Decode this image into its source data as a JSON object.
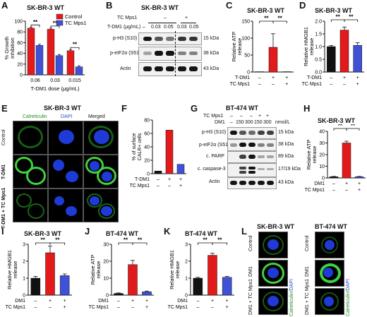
{
  "panels": {
    "A": {
      "letter": "A",
      "title": "SK-BR-3 WT",
      "ylabel": "% Growth inhibition",
      "xlabel": "T-DM1 dose (μg/mL)",
      "legend": [
        "Control",
        "TC Mps1"
      ],
      "yticks": [
        "0",
        "20",
        "40",
        "60",
        "80",
        "100"
      ],
      "categories": [
        "0.06",
        "0.03",
        "0.015"
      ],
      "sig": [
        "**",
        "**",
        "**"
      ]
    },
    "B": {
      "letter": "B",
      "title": "SK-BR-3 WT",
      "tc_label": "TC Mps1",
      "tc_minus": "–",
      "tc_plus": "+",
      "dose_label": "T-DM1 (μg/mL)",
      "doses": [
        "–",
        "0.03",
        "0.05",
        "0.03",
        "0.05"
      ],
      "rows": [
        "p-H3 (S10)",
        "p-eIF2α (S51)",
        "Actin"
      ],
      "sizes": [
        "15 kDa",
        "38 kDa",
        "43 kDa"
      ]
    },
    "C": {
      "letter": "C",
      "title": "SK-BR-3 WT",
      "ylabel": "Relative ATP release",
      "yticks": [
        "0",
        "50",
        "100",
        "150"
      ],
      "row1_label": "T-DM1",
      "row2_label": "TC Mps1",
      "row1": [
        "–",
        "+",
        "+"
      ],
      "row2": [
        "–",
        "–",
        "+"
      ],
      "sig": [
        "**",
        "**"
      ]
    },
    "D": {
      "letter": "D",
      "title": "SK-BR-3 WT",
      "ylabel": "Relative HMGB1 release",
      "yticks": [
        "0.0",
        "0.5",
        "1.0",
        "1.5",
        "2.0"
      ],
      "row1_label": "T-DM1",
      "row2_label": "TC Mps1",
      "row1": [
        "–",
        "+",
        "+"
      ],
      "row2": [
        "–",
        "–",
        "+"
      ],
      "sig": [
        "**",
        "**"
      ]
    },
    "E": {
      "letter": "E",
      "title": "SK-BR-3 WT",
      "cols": [
        "Calreticulin",
        "DAPI",
        "Merged"
      ],
      "rows": [
        "Control",
        "T-DM1",
        "T-DM1 + TC Mps1"
      ]
    },
    "F": {
      "letter": "F",
      "ylabel": "% of surface CALR+ cells",
      "yticks": [
        "0",
        "20",
        "40",
        "60",
        "80"
      ],
      "row1_label": "T-DM1",
      "row2_label": "TC Mps1",
      "row1": [
        "–",
        "+",
        "+"
      ],
      "row2": [
        "–",
        "–",
        "+"
      ]
    },
    "G": {
      "letter": "G",
      "title": "BT-474 WT",
      "tc_label": "TC Mps1",
      "dm1_label": "DM1",
      "unit": "nmol/L",
      "tc_row": [
        "–",
        "–",
        "–",
        "+",
        "+"
      ],
      "dm1_row": [
        "–",
        "150",
        "300",
        "150",
        "300"
      ],
      "rows": [
        "p-H3 (S10)",
        "p-eIF2α (S51)",
        "c. PARP",
        "c. caspase-3",
        "Actin"
      ],
      "sizes": [
        "15 kDa",
        "38 kDa",
        "89 kDa",
        "17/19 kDa",
        "43 kDa"
      ]
    },
    "H": {
      "letter": "H",
      "title": "SK-BR-3 WT",
      "ylabel": "Relative ATP release",
      "yticks": [
        "0",
        "10",
        "20",
        "30",
        "40"
      ],
      "row1_label": "DM1",
      "row2_label": "TC Mps1",
      "row1": [
        "–",
        "+",
        "+"
      ],
      "row2": [
        "–",
        "–",
        "+"
      ],
      "sig": [
        "**",
        "**"
      ]
    },
    "I": {
      "letter": "I",
      "title": "SK-BR-3 WT",
      "ylabel": "Relative HMGB1 release",
      "yticks": [
        "0",
        "1",
        "2",
        "3"
      ],
      "row1_label": "DM1",
      "row2_label": "TC Mps1",
      "row1": [
        "–",
        "+",
        "+"
      ],
      "row2": [
        "–",
        "–",
        "+"
      ],
      "sig": [
        "**",
        "**"
      ]
    },
    "J": {
      "letter": "J",
      "title": "BT-474 WT",
      "ylabel": "Relative ATP release",
      "yticks": [
        "0",
        "10",
        "20",
        "30"
      ],
      "row1_label": "DM1",
      "row2_label": "TC Mps1",
      "row1": [
        "–",
        "+",
        "+"
      ],
      "row2": [
        "–",
        "–",
        "+"
      ],
      "sig": [
        "**",
        "**"
      ]
    },
    "K": {
      "letter": "K",
      "title": "BT-474 WT",
      "ylabel": "Relative HMGB1 release",
      "yticks": [
        "0",
        "1",
        "2",
        "3"
      ],
      "row1_label": "DM1",
      "row2_label": "TC Mps1",
      "row1": [
        "–",
        "+",
        "+"
      ],
      "row2": [
        "–",
        "–",
        "+"
      ],
      "sig": [
        "**",
        "**"
      ]
    },
    "L": {
      "letter": "L",
      "title_left": "SK-BR-3 WT",
      "title_right": "BT-474 WT",
      "rows": [
        "Control",
        "DM1",
        "DM1 + TC Mps1"
      ],
      "stain_a": "Calreticulin",
      "stain_b": "DAPI"
    }
  },
  "colors": {
    "control": "#e31a1c",
    "tc": "#3f51d6",
    "vehicle": "#111111",
    "red": "#e31a1c",
    "blue": "#3f51d6",
    "black": "#111111"
  },
  "chart_data": [
    {
      "id": "A",
      "type": "bar",
      "categories": [
        "0.06",
        "0.03",
        "0.015"
      ],
      "ylim": [
        0,
        100
      ],
      "series": [
        {
          "name": "Control",
          "values": [
            87,
            85,
            45
          ],
          "err": [
            2,
            2,
            2
          ]
        },
        {
          "name": "TC Mps1",
          "values": [
            55,
            36,
            15
          ],
          "err": [
            2,
            2,
            2
          ]
        }
      ]
    },
    {
      "id": "C",
      "type": "bar",
      "values": [
        1,
        73,
        1
      ],
      "err": [
        0,
        40,
        0
      ],
      "colors": [
        "black",
        "red",
        "blue"
      ],
      "ylim": [
        0,
        150
      ]
    },
    {
      "id": "D",
      "type": "bar",
      "values": [
        1.0,
        1.65,
        1.05
      ],
      "err": [
        0.04,
        0.12,
        0.1
      ],
      "colors": [
        "black",
        "red",
        "blue"
      ],
      "ylim": [
        0,
        2
      ]
    },
    {
      "id": "F",
      "type": "bar",
      "values": [
        4,
        65,
        14
      ],
      "colors": [
        "black",
        "red",
        "blue"
      ],
      "ylim": [
        0,
        80
      ]
    },
    {
      "id": "H",
      "type": "bar",
      "values": [
        1,
        30,
        1
      ],
      "err": [
        0.3,
        1.5,
        0.3
      ],
      "colors": [
        "black",
        "red",
        "blue"
      ],
      "ylim": [
        0,
        40
      ]
    },
    {
      "id": "I",
      "type": "bar",
      "values": [
        1.0,
        2.5,
        1.15
      ],
      "err": [
        0.1,
        0.4,
        0.1
      ],
      "colors": [
        "black",
        "red",
        "blue"
      ],
      "ylim": [
        0,
        3
      ]
    },
    {
      "id": "J",
      "type": "bar",
      "values": [
        1,
        18,
        2
      ],
      "err": [
        0.3,
        2.5,
        0.4
      ],
      "colors": [
        "black",
        "red",
        "blue"
      ],
      "ylim": [
        0,
        30
      ]
    },
    {
      "id": "K",
      "type": "bar",
      "values": [
        1.0,
        2.35,
        1.05
      ],
      "err": [
        0.05,
        0.12,
        0.05
      ],
      "colors": [
        "black",
        "red",
        "blue"
      ],
      "ylim": [
        0,
        3
      ]
    }
  ]
}
